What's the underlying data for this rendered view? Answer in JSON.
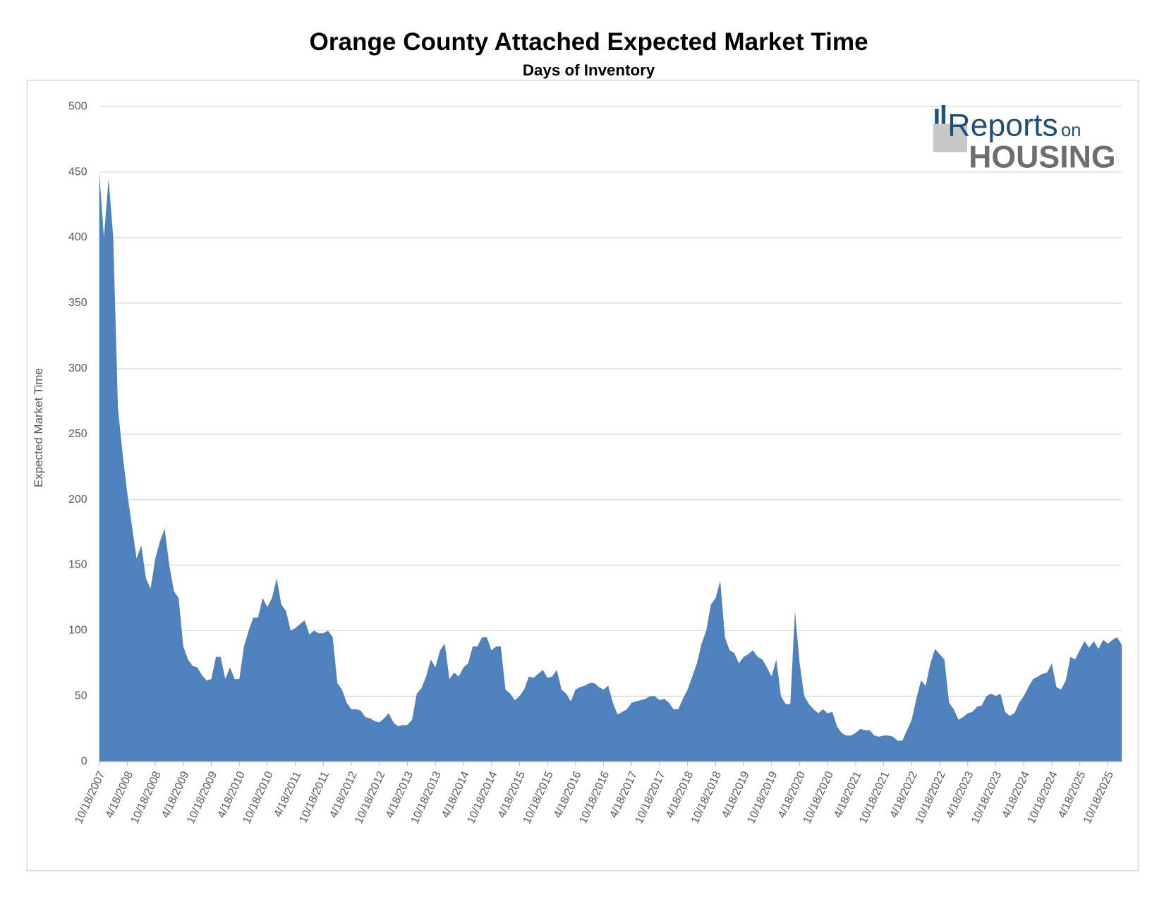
{
  "chart_data": {
    "type": "area",
    "title": "Orange County Attached Expected Market Time",
    "subtitle": "Days of Inventory",
    "y_label": "Expected Market Time",
    "logo": {
      "line1": "Reports",
      "line1_small": "on",
      "line2": "HOUSING"
    },
    "color": "#4f81bd",
    "grid": true,
    "ylim": [
      0,
      500
    ],
    "yticks": [
      0,
      50,
      100,
      150,
      200,
      250,
      300,
      350,
      400,
      450,
      500
    ],
    "categories": [
      "10/18/2007",
      null,
      null,
      null,
      null,
      null,
      "4/18/2008",
      null,
      null,
      null,
      null,
      null,
      "10/18/2008",
      null,
      null,
      null,
      null,
      null,
      "4/18/2009",
      null,
      null,
      null,
      null,
      null,
      "10/18/2009",
      null,
      null,
      null,
      null,
      null,
      "4/18/2010",
      null,
      null,
      null,
      null,
      null,
      "10/18/2010",
      null,
      null,
      null,
      null,
      null,
      "4/18/2011",
      null,
      null,
      null,
      null,
      null,
      "10/18/2011",
      null,
      null,
      null,
      null,
      null,
      "4/18/2012",
      null,
      null,
      null,
      null,
      null,
      "10/18/2012",
      null,
      null,
      null,
      null,
      null,
      "4/18/2013",
      null,
      null,
      null,
      null,
      null,
      "10/18/2013",
      null,
      null,
      null,
      null,
      null,
      "4/18/2014",
      null,
      null,
      null,
      null,
      null,
      "10/18/2014",
      null,
      null,
      null,
      null,
      null,
      "4/18/2015",
      null,
      null,
      null,
      null,
      null,
      "10/18/2015",
      null,
      null,
      null,
      null,
      null,
      "4/18/2016",
      null,
      null,
      null,
      null,
      null,
      "10/18/2016",
      null,
      null,
      null,
      null,
      null,
      "4/18/2017",
      null,
      null,
      null,
      null,
      null,
      "10/18/2017",
      null,
      null,
      null,
      null,
      null,
      "4/18/2018",
      null,
      null,
      null,
      null,
      null,
      "10/18/2018",
      null,
      null,
      null,
      null,
      null,
      "4/18/2019",
      null,
      null,
      null,
      null,
      null,
      "10/18/2019",
      null,
      null,
      null,
      null,
      null,
      "4/18/2020",
      null,
      null,
      null,
      null,
      null,
      "10/18/2020",
      null,
      null,
      null,
      null,
      null,
      "4/18/2021",
      null,
      null,
      null,
      null,
      null,
      "10/18/2021",
      null,
      null,
      null,
      null,
      null,
      "4/18/2022",
      null,
      null,
      null,
      null,
      null,
      "10/18/2022",
      null,
      null,
      null,
      null,
      null,
      "4/18/2023",
      null,
      null,
      null,
      null,
      null,
      "10/18/2023",
      null,
      null,
      null,
      null,
      null,
      "4/18/2024",
      null,
      null,
      null,
      null,
      null,
      "10/18/2024",
      null,
      null,
      null,
      null,
      null,
      "4/18/2025",
      null,
      null,
      null,
      null,
      null,
      "10/18/2025",
      null,
      null,
      null
    ],
    "values": [
      450,
      400,
      445,
      400,
      270,
      235,
      205,
      180,
      155,
      165,
      140,
      132,
      155,
      168,
      178,
      150,
      130,
      125,
      88,
      78,
      73,
      72,
      66,
      62,
      63,
      80,
      80,
      63,
      72,
      63,
      63,
      88,
      100,
      110,
      110,
      125,
      118,
      125,
      140,
      120,
      115,
      100,
      102,
      105,
      108,
      97,
      100,
      98,
      98,
      100,
      95,
      60,
      55,
      45,
      40,
      40,
      39,
      34,
      33,
      31,
      30,
      33,
      37,
      30,
      27,
      28,
      28,
      32,
      52,
      56,
      65,
      78,
      72,
      85,
      90,
      63,
      68,
      65,
      72,
      75,
      88,
      88,
      95,
      95,
      85,
      88,
      88,
      55,
      52,
      47,
      50,
      55,
      65,
      64,
      67,
      70,
      64,
      65,
      70,
      55,
      52,
      46,
      55,
      57,
      58,
      60,
      60,
      57,
      55,
      58,
      45,
      36,
      38,
      40,
      45,
      46,
      47,
      48,
      50,
      50,
      47,
      48,
      45,
      40,
      40,
      48,
      55,
      65,
      75,
      90,
      100,
      120,
      125,
      138,
      95,
      85,
      83,
      75,
      80,
      82,
      85,
      80,
      78,
      72,
      65,
      78,
      50,
      44,
      44,
      115,
      75,
      50,
      44,
      40,
      37,
      40,
      37,
      38,
      27,
      22,
      20,
      20,
      22,
      25,
      24,
      24,
      20,
      19,
      20,
      20,
      19,
      16,
      16,
      24,
      32,
      48,
      62,
      58,
      75,
      86,
      82,
      78,
      45,
      40,
      32,
      34,
      37,
      38,
      42,
      43,
      50,
      52,
      50,
      52,
      38,
      35,
      37,
      45,
      50,
      57,
      63,
      65,
      67,
      68,
      75,
      57,
      55,
      62,
      80,
      78,
      85,
      92,
      87,
      92,
      86,
      93,
      90,
      93,
      95,
      89
    ]
  }
}
